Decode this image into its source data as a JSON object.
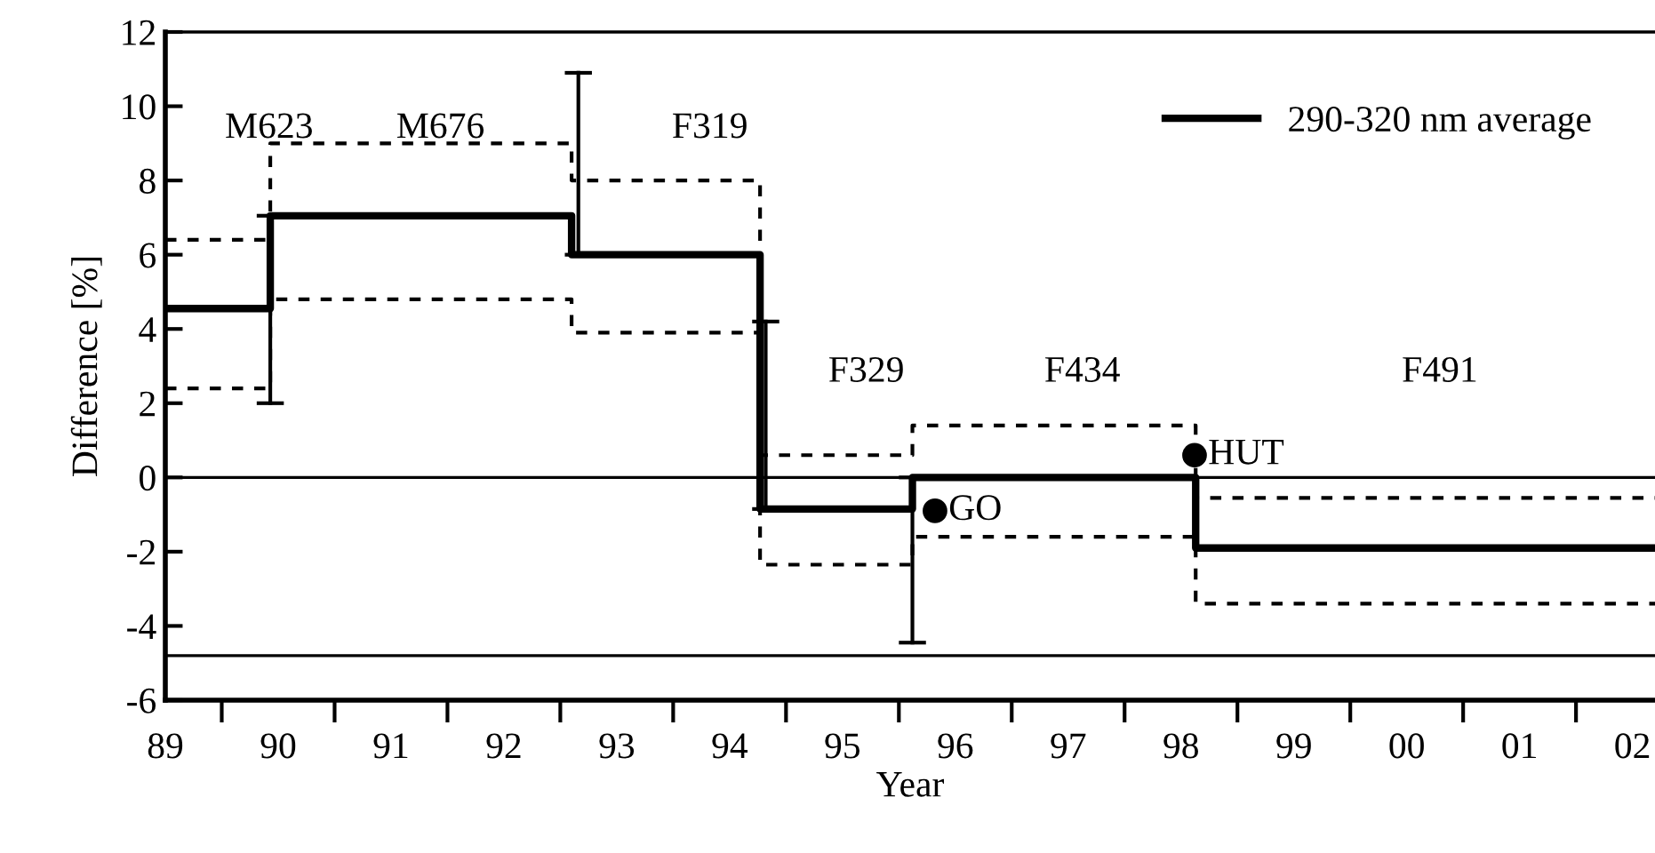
{
  "chart_data": {
    "type": "step",
    "xlabel": "Year",
    "ylabel": "Difference [%]",
    "xlim": [
      1989,
      2002.2
    ],
    "ylim": [
      -6,
      12
    ],
    "xticks": [
      {
        "value": 1989,
        "label": "89"
      },
      {
        "value": 1989.5,
        "label": null
      },
      {
        "value": 1990,
        "label": "90"
      },
      {
        "value": 1990.5,
        "label": null
      },
      {
        "value": 1991,
        "label": "91"
      },
      {
        "value": 1991.5,
        "label": null
      },
      {
        "value": 1992,
        "label": "92"
      },
      {
        "value": 1992.5,
        "label": null
      },
      {
        "value": 1993,
        "label": "93"
      },
      {
        "value": 1993.5,
        "label": null
      },
      {
        "value": 1994,
        "label": "94"
      },
      {
        "value": 1994.5,
        "label": null
      },
      {
        "value": 1995,
        "label": "95"
      },
      {
        "value": 1995.5,
        "label": null
      },
      {
        "value": 1996,
        "label": "96"
      },
      {
        "value": 1996.5,
        "label": null
      },
      {
        "value": 1997,
        "label": "97"
      },
      {
        "value": 1997.5,
        "label": null
      },
      {
        "value": 1998,
        "label": "98"
      },
      {
        "value": 1998.5,
        "label": null
      },
      {
        "value": 1999,
        "label": "99"
      },
      {
        "value": 1999.5,
        "label": null
      },
      {
        "value": 2000,
        "label": "00"
      },
      {
        "value": 2000.5,
        "label": null
      },
      {
        "value": 2001,
        "label": "01"
      },
      {
        "value": 2001.5,
        "label": null
      },
      {
        "value": 2002,
        "label": "02"
      }
    ],
    "yticks": [
      -6,
      -4,
      -2,
      0,
      2,
      4,
      6,
      8,
      10,
      12
    ],
    "grid": false,
    "legend": "top right",
    "series": [
      {
        "name": "290-320 nm average",
        "color": "#000000",
        "line_style": "solid",
        "x": [
          1989,
          1989.93,
          1992.6,
          1994.27,
          1995.62,
          1998.13,
          2002.2
        ],
        "values": [
          4.55,
          7.05,
          6.0,
          -0.85,
          0.0,
          -1.9,
          -1.9
        ]
      },
      {
        "color": "#000000",
        "line_style": "dashed",
        "x": [
          1989,
          1989.93,
          1992.6,
          1994.27,
          1995.62,
          1998.13,
          2002.2
        ],
        "values": [
          6.4,
          9.0,
          8.0,
          0.6,
          1.4,
          -0.55,
          -0.55
        ]
      },
      {
        "color": "#000000",
        "line_style": "dashed",
        "x": [
          1989,
          1989.93,
          1992.6,
          1994.27,
          1995.62,
          1998.13,
          2002.2
        ],
        "values": [
          2.4,
          4.8,
          3.9,
          -2.35,
          -1.6,
          -3.4,
          -3.4
        ]
      },
      {
        "type": "line",
        "line_style": "solid",
        "color": "#000000",
        "x": [
          1989.93,
          1989.93,
          null,
          1992.66,
          1992.66,
          null,
          1994.32,
          1994.32,
          null,
          1995.62,
          1995.62
        ],
        "values": [
          2.0,
          7.05,
          null,
          6.0,
          10.9,
          null,
          -0.85,
          4.2,
          null,
          -4.45,
          0.0
        ]
      },
      {
        "type": "scatter",
        "marker": "circle",
        "name": "GO",
        "color": "#000000",
        "x": [
          1995.82
        ],
        "values": [
          -0.9
        ]
      },
      {
        "type": "scatter",
        "marker": "circle",
        "name": "HUT",
        "color": "#000000",
        "x": [
          1998.12
        ],
        "values": [
          0.6
        ]
      }
    ],
    "ref_lines": [
      {
        "axis": "y",
        "value": 0,
        "color": "#000000"
      },
      {
        "axis": "y",
        "value": -4.8,
        "color": "#000000"
      }
    ],
    "annotations": [
      "M623",
      "M676",
      "F319",
      "F329",
      "F434",
      "F491"
    ]
  }
}
